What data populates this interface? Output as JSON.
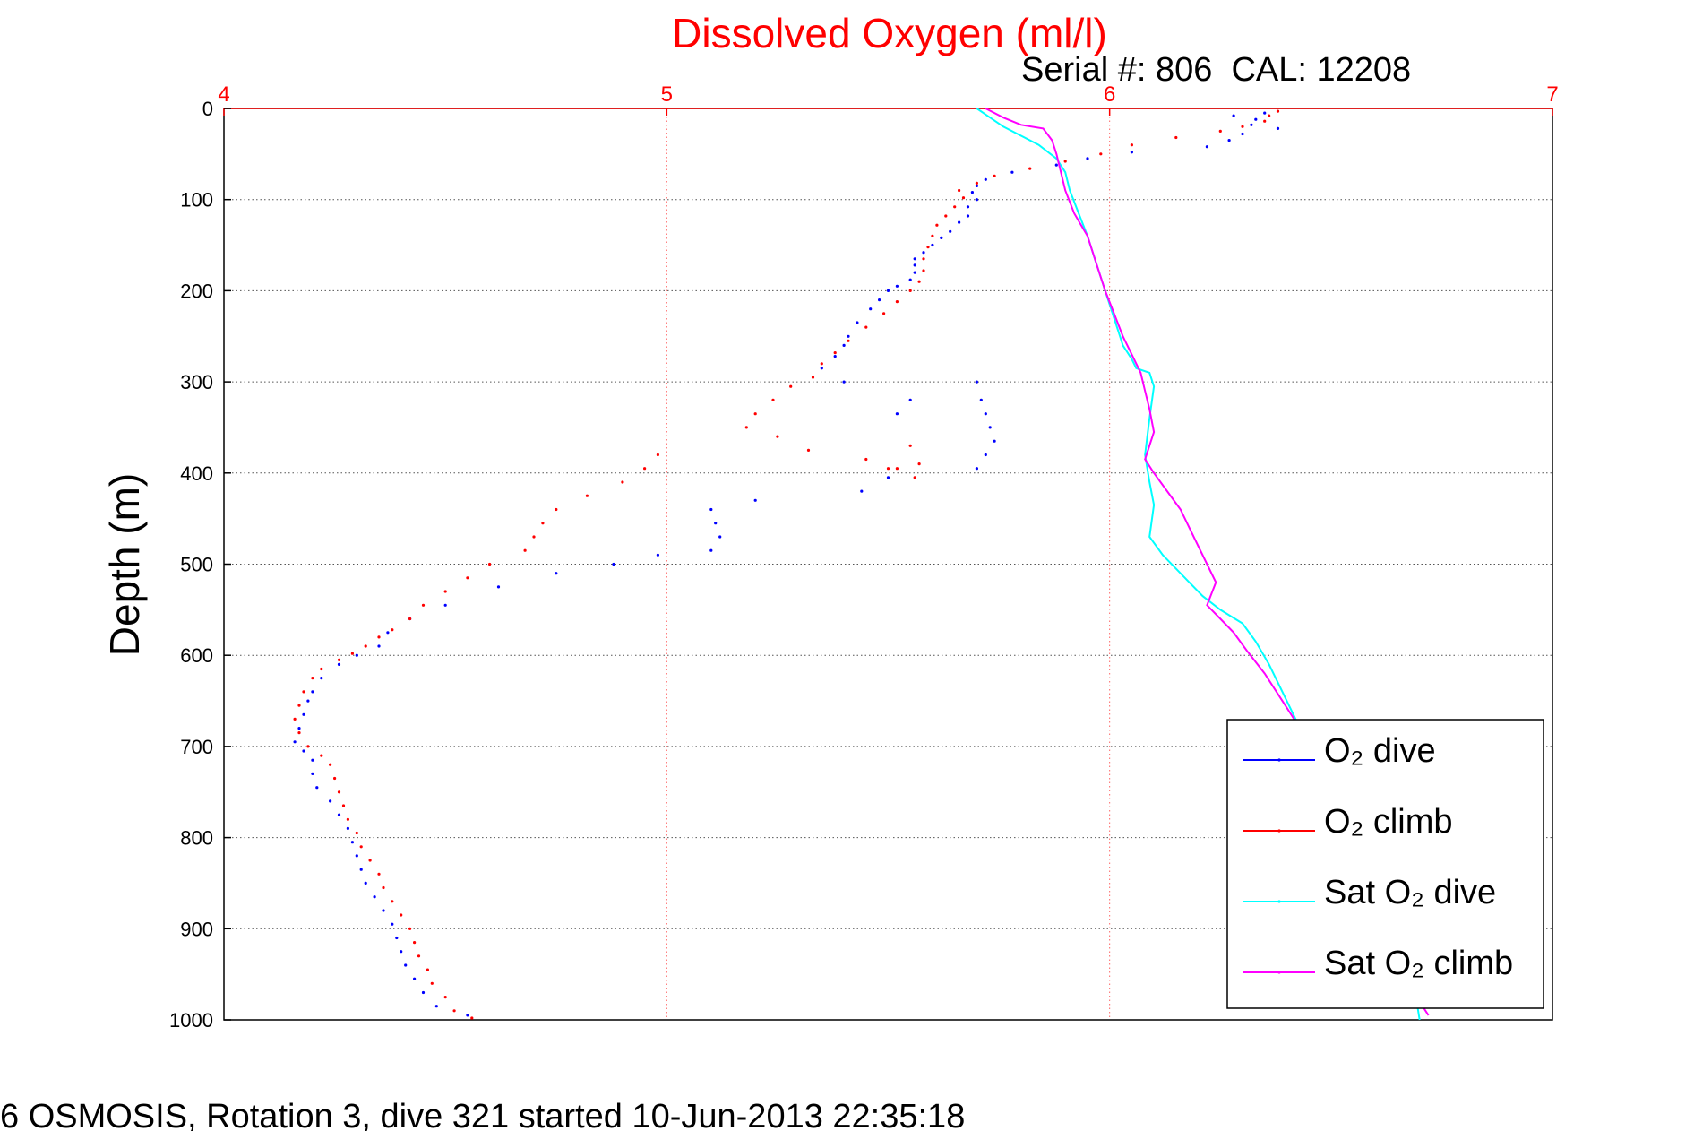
{
  "chart_data": {
    "type": "line",
    "title": "Dissolved Oxygen (ml/l)",
    "subtitle": "Serial #: 806  CAL: 12208",
    "ylabel": "Depth (m)",
    "xlabel": "",
    "footer": "6 OSMOSIS, Rotation 3, dive 321 started 10-Jun-2013 22:35:18",
    "xlim": [
      4,
      7
    ],
    "ylim": [
      0,
      1000
    ],
    "y_reversed": true,
    "x_axis_position": "top",
    "x_ticks": [
      "4",
      "5",
      "6",
      "7"
    ],
    "y_ticks": [
      "0",
      "100",
      "200",
      "300",
      "400",
      "500",
      "600",
      "700",
      "800",
      "900",
      "1000"
    ],
    "grid": true,
    "legend_position": "bottom-right",
    "colors": {
      "title": "#ff0000",
      "x_axis": "#ff0000",
      "grid_x": "#ff6666",
      "grid_y": "#555555",
      "o2_dive": "#0000ff",
      "o2_climb": "#ff0000",
      "sat_dive": "#00ffff",
      "sat_climb": "#ff00ff"
    },
    "series": [
      {
        "key": "o2_dive",
        "name": "O₂ dive",
        "style": "dots",
        "points": [
          [
            6.35,
            5
          ],
          [
            6.28,
            8
          ],
          [
            6.33,
            12
          ],
          [
            6.32,
            18
          ],
          [
            6.38,
            22
          ],
          [
            6.3,
            28
          ],
          [
            6.27,
            35
          ],
          [
            6.22,
            42
          ],
          [
            6.05,
            48
          ],
          [
            5.95,
            55
          ],
          [
            5.88,
            62
          ],
          [
            5.78,
            70
          ],
          [
            5.72,
            78
          ],
          [
            5.7,
            85
          ],
          [
            5.69,
            92
          ],
          [
            5.7,
            100
          ],
          [
            5.68,
            108
          ],
          [
            5.68,
            118
          ],
          [
            5.66,
            125
          ],
          [
            5.64,
            135
          ],
          [
            5.62,
            142
          ],
          [
            5.6,
            150
          ],
          [
            5.58,
            158
          ],
          [
            5.56,
            165
          ],
          [
            5.56,
            172
          ],
          [
            5.56,
            180
          ],
          [
            5.55,
            188
          ],
          [
            5.52,
            195
          ],
          [
            5.5,
            200
          ],
          [
            5.48,
            210
          ],
          [
            5.46,
            220
          ],
          [
            5.43,
            235
          ],
          [
            5.41,
            250
          ],
          [
            5.4,
            260
          ],
          [
            5.38,
            272
          ],
          [
            5.35,
            285
          ],
          [
            5.4,
            300
          ],
          [
            5.55,
            320
          ],
          [
            5.52,
            335
          ],
          [
            5.7,
            300
          ],
          [
            5.71,
            320
          ],
          [
            5.72,
            335
          ],
          [
            5.73,
            350
          ],
          [
            5.74,
            365
          ],
          [
            5.72,
            380
          ],
          [
            5.7,
            395
          ],
          [
            5.5,
            405
          ],
          [
            5.44,
            420
          ],
          [
            5.2,
            430
          ],
          [
            5.1,
            440
          ],
          [
            5.11,
            455
          ],
          [
            5.12,
            470
          ],
          [
            5.1,
            485
          ],
          [
            4.98,
            490
          ],
          [
            4.88,
            500
          ],
          [
            4.75,
            510
          ],
          [
            4.62,
            525
          ],
          [
            4.5,
            545
          ],
          [
            4.42,
            560
          ],
          [
            4.37,
            575
          ],
          [
            4.35,
            590
          ],
          [
            4.3,
            600
          ],
          [
            4.26,
            610
          ],
          [
            4.22,
            625
          ],
          [
            4.2,
            640
          ],
          [
            4.19,
            650
          ],
          [
            4.18,
            665
          ],
          [
            4.17,
            680
          ],
          [
            4.16,
            695
          ],
          [
            4.18,
            705
          ],
          [
            4.2,
            715
          ],
          [
            4.2,
            730
          ],
          [
            4.21,
            745
          ],
          [
            4.24,
            760
          ],
          [
            4.26,
            775
          ],
          [
            4.28,
            790
          ],
          [
            4.29,
            805
          ],
          [
            4.3,
            820
          ],
          [
            4.31,
            835
          ],
          [
            4.32,
            850
          ],
          [
            4.34,
            865
          ],
          [
            4.36,
            880
          ],
          [
            4.38,
            895
          ],
          [
            4.39,
            910
          ],
          [
            4.4,
            925
          ],
          [
            4.41,
            940
          ],
          [
            4.43,
            955
          ],
          [
            4.45,
            970
          ],
          [
            4.48,
            985
          ],
          [
            4.55,
            995
          ]
        ]
      },
      {
        "key": "o2_climb",
        "name": "O₂ climb",
        "style": "dots",
        "points": [
          [
            6.38,
            3
          ],
          [
            6.36,
            8
          ],
          [
            6.35,
            14
          ],
          [
            6.3,
            20
          ],
          [
            6.25,
            25
          ],
          [
            6.15,
            32
          ],
          [
            6.05,
            40
          ],
          [
            5.98,
            50
          ],
          [
            5.9,
            58
          ],
          [
            5.82,
            66
          ],
          [
            5.74,
            74
          ],
          [
            5.7,
            82
          ],
          [
            5.66,
            90
          ],
          [
            5.67,
            98
          ],
          [
            5.65,
            108
          ],
          [
            5.63,
            118
          ],
          [
            5.61,
            128
          ],
          [
            5.6,
            140
          ],
          [
            5.59,
            152
          ],
          [
            5.58,
            165
          ],
          [
            5.58,
            178
          ],
          [
            5.57,
            190
          ],
          [
            5.55,
            200
          ],
          [
            5.52,
            212
          ],
          [
            5.49,
            225
          ],
          [
            5.45,
            240
          ],
          [
            5.41,
            255
          ],
          [
            5.38,
            268
          ],
          [
            5.35,
            280
          ],
          [
            5.33,
            295
          ],
          [
            5.28,
            305
          ],
          [
            5.24,
            320
          ],
          [
            5.2,
            335
          ],
          [
            5.18,
            350
          ],
          [
            5.25,
            360
          ],
          [
            5.32,
            375
          ],
          [
            5.45,
            385
          ],
          [
            5.52,
            395
          ],
          [
            5.55,
            370
          ],
          [
            5.57,
            390
          ],
          [
            5.56,
            405
          ],
          [
            5.5,
            395
          ],
          [
            4.98,
            380
          ],
          [
            4.95,
            395
          ],
          [
            4.9,
            410
          ],
          [
            4.82,
            425
          ],
          [
            4.75,
            440
          ],
          [
            4.72,
            455
          ],
          [
            4.7,
            470
          ],
          [
            4.68,
            485
          ],
          [
            4.6,
            500
          ],
          [
            4.55,
            515
          ],
          [
            4.5,
            530
          ],
          [
            4.45,
            545
          ],
          [
            4.42,
            560
          ],
          [
            4.38,
            572
          ],
          [
            4.35,
            580
          ],
          [
            4.32,
            590
          ],
          [
            4.29,
            598
          ],
          [
            4.26,
            605
          ],
          [
            4.22,
            615
          ],
          [
            4.2,
            625
          ],
          [
            4.18,
            640
          ],
          [
            4.17,
            655
          ],
          [
            4.16,
            670
          ],
          [
            4.17,
            685
          ],
          [
            4.19,
            700
          ],
          [
            4.22,
            710
          ],
          [
            4.24,
            720
          ],
          [
            4.25,
            735
          ],
          [
            4.26,
            750
          ],
          [
            4.27,
            765
          ],
          [
            4.28,
            780
          ],
          [
            4.3,
            795
          ],
          [
            4.31,
            810
          ],
          [
            4.33,
            825
          ],
          [
            4.35,
            840
          ],
          [
            4.36,
            855
          ],
          [
            4.38,
            870
          ],
          [
            4.4,
            885
          ],
          [
            4.42,
            900
          ],
          [
            4.43,
            915
          ],
          [
            4.44,
            930
          ],
          [
            4.46,
            945
          ],
          [
            4.47,
            960
          ],
          [
            4.5,
            975
          ],
          [
            4.52,
            990
          ],
          [
            4.56,
            998
          ]
        ]
      },
      {
        "key": "sat_dive",
        "name": "Sat O₂ dive",
        "style": "line",
        "points": [
          [
            5.7,
            0
          ],
          [
            5.73,
            10
          ],
          [
            5.76,
            20
          ],
          [
            5.8,
            30
          ],
          [
            5.84,
            40
          ],
          [
            5.88,
            55
          ],
          [
            5.9,
            70
          ],
          [
            5.91,
            90
          ],
          [
            5.93,
            115
          ],
          [
            5.95,
            140
          ],
          [
            5.97,
            170
          ],
          [
            5.99,
            200
          ],
          [
            6.01,
            230
          ],
          [
            6.03,
            260
          ],
          [
            6.05,
            275
          ],
          [
            6.06,
            285
          ],
          [
            6.09,
            290
          ],
          [
            6.1,
            305
          ],
          [
            6.09,
            340
          ],
          [
            6.08,
            380
          ],
          [
            6.09,
            410
          ],
          [
            6.1,
            435
          ],
          [
            6.09,
            470
          ],
          [
            6.12,
            490
          ],
          [
            6.15,
            505
          ],
          [
            6.18,
            520
          ],
          [
            6.21,
            535
          ],
          [
            6.25,
            550
          ],
          [
            6.3,
            565
          ],
          [
            6.33,
            585
          ],
          [
            6.36,
            610
          ],
          [
            6.39,
            640
          ],
          [
            6.42,
            670
          ],
          [
            6.45,
            700
          ],
          [
            6.48,
            730
          ],
          [
            6.51,
            760
          ],
          [
            6.54,
            790
          ],
          [
            6.57,
            820
          ],
          [
            6.6,
            850
          ],
          [
            6.63,
            880
          ],
          [
            6.65,
            910
          ],
          [
            6.67,
            940
          ],
          [
            6.69,
            970
          ],
          [
            6.7,
            1000
          ]
        ]
      },
      {
        "key": "sat_climb",
        "name": "Sat O₂ climb",
        "style": "line",
        "points": [
          [
            5.72,
            0
          ],
          [
            5.76,
            10
          ],
          [
            5.8,
            18
          ],
          [
            5.85,
            22
          ],
          [
            5.87,
            35
          ],
          [
            5.88,
            50
          ],
          [
            5.89,
            70
          ],
          [
            5.9,
            90
          ],
          [
            5.92,
            115
          ],
          [
            5.95,
            140
          ],
          [
            5.97,
            170
          ],
          [
            5.99,
            200
          ],
          [
            6.01,
            225
          ],
          [
            6.03,
            250
          ],
          [
            6.05,
            270
          ],
          [
            6.07,
            290
          ],
          [
            6.08,
            310
          ],
          [
            6.09,
            330
          ],
          [
            6.1,
            355
          ],
          [
            6.08,
            385
          ],
          [
            6.1,
            400
          ],
          [
            6.13,
            420
          ],
          [
            6.16,
            440
          ],
          [
            6.18,
            460
          ],
          [
            6.2,
            480
          ],
          [
            6.22,
            500
          ],
          [
            6.24,
            520
          ],
          [
            6.22,
            545
          ],
          [
            6.25,
            560
          ],
          [
            6.28,
            575
          ],
          [
            6.31,
            595
          ],
          [
            6.35,
            620
          ],
          [
            6.39,
            650
          ],
          [
            6.43,
            680
          ],
          [
            6.46,
            710
          ],
          [
            6.5,
            740
          ],
          [
            6.53,
            770
          ],
          [
            6.56,
            800
          ],
          [
            6.59,
            830
          ],
          [
            6.62,
            860
          ],
          [
            6.64,
            890
          ],
          [
            6.66,
            920
          ],
          [
            6.68,
            950
          ],
          [
            6.7,
            980
          ],
          [
            6.72,
            995
          ]
        ]
      }
    ]
  }
}
